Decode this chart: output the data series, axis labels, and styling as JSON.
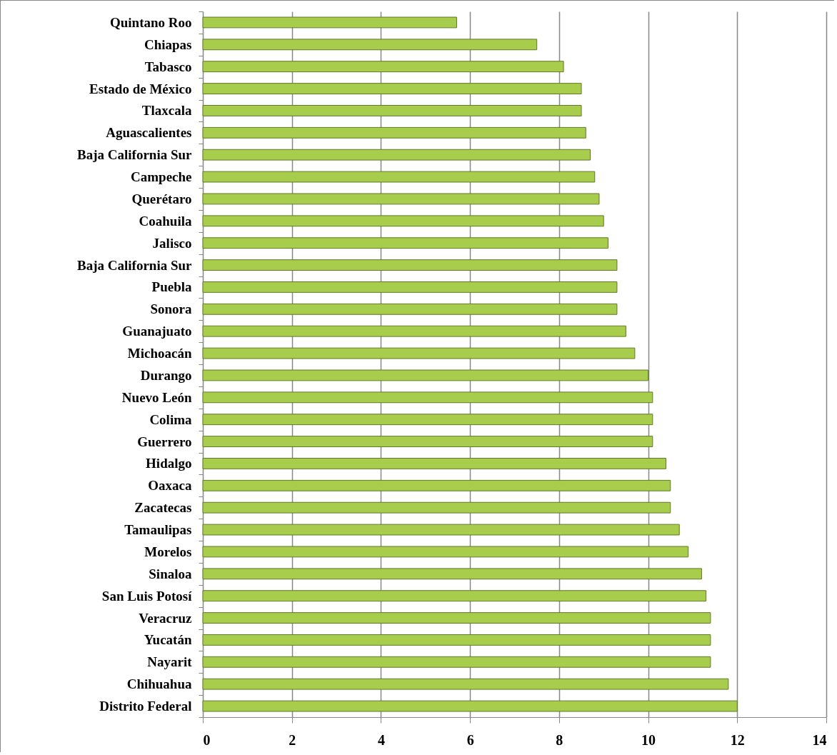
{
  "chart_data": {
    "type": "bar",
    "orientation": "horizontal",
    "categories": [
      "Quintano Roo",
      "Chiapas",
      "Tabasco",
      "Estado de México",
      "Tlaxcala",
      "Aguascalientes",
      "Baja California Sur",
      "Campeche",
      "Querétaro",
      "Coahuila",
      "Jalisco",
      "Baja California Sur",
      "Puebla",
      "Sonora",
      "Guanajuato",
      "Michoacán",
      "Durango",
      "Nuevo León",
      "Colima",
      "Guerrero",
      "Hidalgo",
      "Oaxaca",
      "Zacatecas",
      "Tamaulipas",
      "Morelos",
      "Sinaloa",
      "San Luis Potosí",
      "Veracruz",
      "Yucatán",
      "Nayarit",
      "Chihuahua",
      "Distrito Federal"
    ],
    "values": [
      5.7,
      7.5,
      8.1,
      8.5,
      8.5,
      8.6,
      8.7,
      8.8,
      8.9,
      9.0,
      9.1,
      9.3,
      9.3,
      9.3,
      9.5,
      9.7,
      10.0,
      10.1,
      10.1,
      10.1,
      10.4,
      10.5,
      10.5,
      10.7,
      10.9,
      11.2,
      11.3,
      11.4,
      11.4,
      11.4,
      11.8,
      12.0
    ],
    "color": "#a8cc4c",
    "xlim": [
      0,
      14
    ],
    "xticks": [
      0,
      2,
      4,
      6,
      8,
      10,
      12,
      14
    ],
    "grid": "x"
  }
}
